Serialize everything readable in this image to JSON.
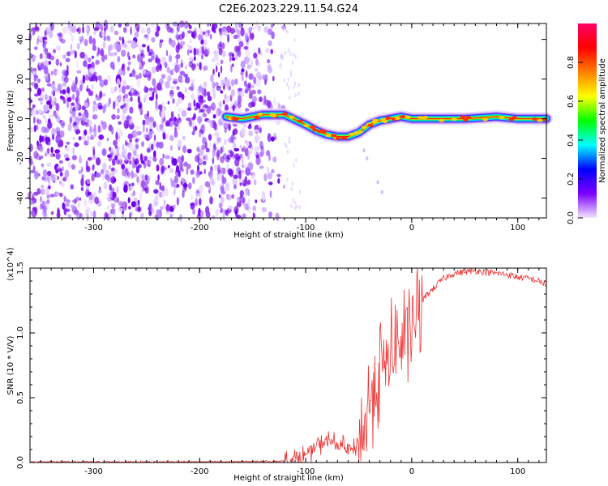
{
  "chart_data": [
    {
      "type": "heatmap",
      "title": "C2E6.2023.229.11.54.G24",
      "xlabel": "Height of straight line (km)",
      "ylabel": "Frequency (Hz)",
      "xlim": [
        -360,
        127
      ],
      "ylim": [
        -50,
        48
      ],
      "x_ticks": [
        -300,
        -200,
        -100,
        0,
        100
      ],
      "x_tick_labels": [
        "-300",
        "-200",
        "-100",
        "0",
        "100"
      ],
      "y_ticks": [
        -40,
        -20,
        0,
        20,
        40
      ],
      "y_tick_labels": [
        "-40",
        "-20",
        "0",
        "20",
        "40"
      ],
      "colorbar": {
        "label": "Normalized spectral amplitude",
        "range": [
          0,
          1
        ],
        "ticks": [
          0.0,
          0.2,
          0.4,
          0.6,
          0.8
        ],
        "tick_labels": [
          "0.0",
          "0.2",
          "0.4",
          "0.6",
          "0.8"
        ],
        "colors": [
          "#f2e6ff",
          "#7b00ff",
          "#0000ff",
          "#00ffff",
          "#00ff00",
          "#ffff00",
          "#ff7f00",
          "#ff0000",
          "#ff0066"
        ]
      },
      "noise_region_x": [
        -360,
        -120
      ],
      "signal_trace": {
        "x": [
          -175,
          -160,
          -140,
          -120,
          -100,
          -90,
          -80,
          -70,
          -60,
          -50,
          -40,
          -30,
          -20,
          -10,
          0,
          20,
          50,
          80,
          100,
          127
        ],
        "y": [
          1,
          0,
          2,
          2,
          -3,
          -6,
          -8,
          -9,
          -9,
          -7,
          -3,
          -1,
          0,
          1,
          0,
          0,
          0,
          1,
          0,
          0
        ]
      }
    },
    {
      "type": "line",
      "xlabel": "Height of straight line (km)",
      "ylabel": "SNR (10 * V/V)",
      "y_scale_label": "(x10^4)",
      "xlim": [
        -360,
        127
      ],
      "ylim": [
        0,
        1.5
      ],
      "x_ticks": [
        -300,
        -200,
        -100,
        0,
        100
      ],
      "x_tick_labels": [
        "-300",
        "-200",
        "-100",
        "0",
        "100"
      ],
      "y_ticks": [
        0.0,
        0.5,
        1.0,
        1.5
      ],
      "y_tick_labels": [
        "0.0",
        "0.5",
        "1.0",
        "1.5"
      ],
      "line_color": "#ee3333",
      "series": [
        {
          "name": "SNR",
          "x": [
            -360,
            -300,
            -200,
            -120,
            -110,
            -100,
            -90,
            -80,
            -70,
            -60,
            -55,
            -50,
            -45,
            -40,
            -35,
            -30,
            -25,
            -20,
            -15,
            -10,
            -5,
            0,
            5,
            10,
            15,
            20,
            25,
            30,
            40,
            50,
            60,
            70,
            80,
            90,
            100,
            110,
            120,
            127
          ],
          "y": [
            0.005,
            0.005,
            0.005,
            0.01,
            0.03,
            0.06,
            0.12,
            0.17,
            0.14,
            0.1,
            0.09,
            0.18,
            0.25,
            0.45,
            0.6,
            0.7,
            0.75,
            0.82,
            0.88,
            0.93,
            0.98,
            1.05,
            1.15,
            1.25,
            1.3,
            1.34,
            1.38,
            1.42,
            1.46,
            1.47,
            1.48,
            1.47,
            1.46,
            1.45,
            1.43,
            1.42,
            1.4,
            1.37
          ]
        }
      ]
    }
  ]
}
